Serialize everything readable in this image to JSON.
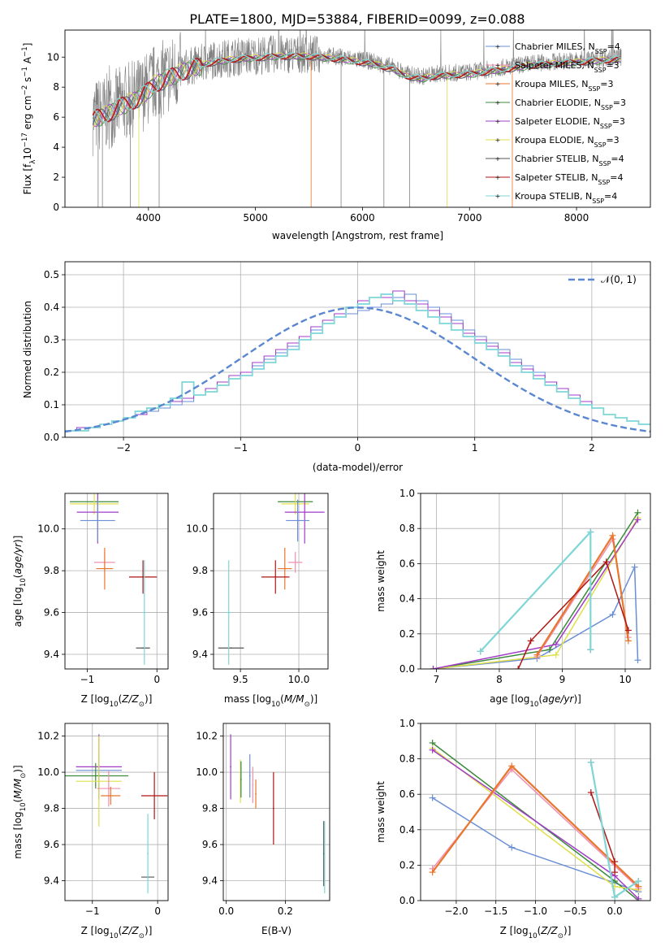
{
  "figure_title": "PLATE=1800, MJD=53884, FIBERID=0099, z=0.088",
  "chart_data": [
    {
      "id": "spectrum",
      "type": "line",
      "title": "PLATE=1800, MJD=53884, FIBERID=0099, z=0.088",
      "xlabel": "wavelength [Angstrom, rest frame]",
      "ylabel": "Flux [f_λ10^-17 erg cm^-2 s^-1 A^-1]",
      "xlim": [
        3220,
        8690
      ],
      "ylim": [
        0,
        11.8
      ],
      "xticks": [
        "4000",
        "5000",
        "6000",
        "7000",
        "8000"
      ],
      "yticks": [
        "0",
        "2",
        "4",
        "6",
        "8",
        "10"
      ],
      "grid": false,
      "legend": "right",
      "legend_entries": [
        {
          "name": "Chabrier MILES, N_SSP=4",
          "color": "#6a8fd6"
        },
        {
          "name": "Salpeter MILES, N_SSP=3",
          "color": "#f08fb0"
        },
        {
          "name": "Kroupa MILES, N_SSP=3",
          "color": "#e8762c"
        },
        {
          "name": "Chabrier ELODIE, N_SSP=3",
          "color": "#3c8a3c"
        },
        {
          "name": "Salpeter ELODIE, N_SSP=3",
          "color": "#a23cc8"
        },
        {
          "name": "Kroupa ELODIE, N_SSP=3",
          "color": "#dfe04a"
        },
        {
          "name": "Chabrier STELIB, N_SSP=4",
          "color": "#555555"
        },
        {
          "name": "Salpeter STELIB, N_SSP=4",
          "color": "#b01515"
        },
        {
          "name": "Kroupa STELIB, N_SSP=4",
          "color": "#7fd6d6"
        }
      ],
      "observed_color": "#808080",
      "continuum": [
        [
          3480,
          6.0
        ],
        [
          3600,
          6.3
        ],
        [
          3750,
          6.9
        ],
        [
          3850,
          7.2
        ],
        [
          3950,
          7.6
        ],
        [
          4050,
          8.3
        ],
        [
          4200,
          8.8
        ],
        [
          4400,
          9.4
        ],
        [
          4600,
          9.8
        ],
        [
          4800,
          10.0
        ],
        [
          5000,
          10.1
        ],
        [
          5200,
          10.2
        ],
        [
          5500,
          10.2
        ],
        [
          5800,
          10.0
        ],
        [
          6100,
          9.7
        ],
        [
          6300,
          9.3
        ],
        [
          6400,
          8.9
        ],
        [
          6550,
          8.7
        ],
        [
          6700,
          8.9
        ],
        [
          7000,
          9.0
        ],
        [
          7300,
          9.3
        ],
        [
          7600,
          9.6
        ],
        [
          8000,
          9.8
        ],
        [
          8400,
          10.0
        ]
      ]
    },
    {
      "id": "residuals",
      "type": "step",
      "xlabel": "(data-model)/error",
      "ylabel": "Normed distribution",
      "xlim": [
        -2.5,
        2.5
      ],
      "ylim": [
        0,
        0.54
      ],
      "xticks": [
        "−2",
        "−1",
        "0",
        "1",
        "2"
      ],
      "yticks": [
        "0.0",
        "0.1",
        "0.2",
        "0.3",
        "0.4",
        "0.5"
      ],
      "grid": true,
      "legend": "top-right",
      "legend_entry": "𝒩(0, 1)",
      "normal_color": "#5b87d0",
      "bin_width": 0.1,
      "bin_start": -2.5,
      "histograms": [
        {
          "color": "#6a8fd6",
          "values": [
            0.02,
            0.02,
            0.03,
            0.04,
            0.05,
            0.06,
            0.07,
            0.08,
            0.09,
            0.1,
            0.11,
            0.13,
            0.15,
            0.17,
            0.18,
            0.2,
            0.22,
            0.24,
            0.26,
            0.28,
            0.31,
            0.33,
            0.35,
            0.37,
            0.38,
            0.39,
            0.4,
            0.41,
            0.43,
            0.44,
            0.42,
            0.4,
            0.38,
            0.36,
            0.33,
            0.31,
            0.29,
            0.27,
            0.24,
            0.22,
            0.2,
            0.17,
            0.15,
            0.13,
            0.11,
            0.09,
            0.07,
            0.06,
            0.05,
            0.04
          ]
        },
        {
          "color": "#a23cc8",
          "values": [
            0.02,
            0.03,
            0.03,
            0.04,
            0.05,
            0.06,
            0.07,
            0.09,
            0.1,
            0.11,
            0.12,
            0.13,
            0.15,
            0.17,
            0.19,
            0.2,
            0.23,
            0.25,
            0.27,
            0.29,
            0.31,
            0.34,
            0.36,
            0.38,
            0.4,
            0.42,
            0.43,
            0.43,
            0.45,
            0.42,
            0.41,
            0.39,
            0.37,
            0.35,
            0.32,
            0.3,
            0.28,
            0.26,
            0.23,
            0.21,
            0.19,
            0.17,
            0.15,
            0.13,
            0.11,
            0.09,
            0.07,
            0.06,
            0.05,
            0.04
          ]
        },
        {
          "color": "#7fd6d6",
          "values": [
            0.02,
            0.02,
            0.03,
            0.04,
            0.05,
            0.06,
            0.08,
            0.09,
            0.1,
            0.12,
            0.17,
            0.13,
            0.14,
            0.16,
            0.18,
            0.19,
            0.21,
            0.23,
            0.25,
            0.27,
            0.3,
            0.32,
            0.35,
            0.37,
            0.4,
            0.41,
            0.43,
            0.44,
            0.42,
            0.41,
            0.39,
            0.37,
            0.35,
            0.33,
            0.31,
            0.29,
            0.27,
            0.25,
            0.22,
            0.2,
            0.18,
            0.16,
            0.14,
            0.12,
            0.1,
            0.09,
            0.07,
            0.06,
            0.05,
            0.04
          ]
        }
      ],
      "normal_curve": {
        "mu": 0,
        "sigma": 1
      }
    },
    {
      "id": "age-vs-Z",
      "type": "scatter",
      "xlabel": "Z [log10(Z/Z⊙)]",
      "ylabel": "age  [log10(age/yr)]",
      "xlim": [
        -1.32,
        0.16
      ],
      "ylim": [
        9.33,
        10.17
      ],
      "xticks": [
        "−1",
        "0"
      ],
      "yticks": [
        "9.4",
        "9.6",
        "9.8",
        "10.0"
      ],
      "grid": true,
      "points": [
        {
          "x": -0.9,
          "y": 10.13,
          "xerr": 0.35,
          "yerr": 0.0,
          "color": "#3c8a3c"
        },
        {
          "x": -0.9,
          "y": 10.12,
          "xerr": 0.35,
          "yerr": 0.05,
          "color": "#dfe04a"
        },
        {
          "x": -0.85,
          "y": 10.08,
          "xerr": 0.3,
          "yerr": 0.15,
          "color": "#a23cc8"
        },
        {
          "x": -0.85,
          "y": 10.04,
          "xerr": 0.25,
          "yerr": 0.1,
          "color": "#6a8fd6"
        },
        {
          "x": -0.75,
          "y": 9.84,
          "xerr": 0.15,
          "yerr": 0.05,
          "color": "#f08fb0"
        },
        {
          "x": -0.75,
          "y": 9.81,
          "xerr": 0.12,
          "yerr": 0.1,
          "color": "#e8762c"
        },
        {
          "x": -0.2,
          "y": 9.77,
          "xerr": 0.2,
          "yerr": 0.08,
          "color": "#b01515"
        },
        {
          "x": -0.2,
          "y": 9.43,
          "xerr": 0.1,
          "yerr": 0.0,
          "color": "#555555"
        },
        {
          "x": -0.18,
          "y": 9.6,
          "xerr": 0.02,
          "yerr": 0.25,
          "color": "#7fd6d6"
        }
      ]
    },
    {
      "id": "age-vs-mass",
      "type": "scatter",
      "xlabel": "mass [log10(M/M⊙)]",
      "ylabel": "",
      "xlim": [
        9.27,
        10.25
      ],
      "ylim": [
        9.33,
        10.17
      ],
      "xticks": [
        "9.5",
        "10.0"
      ],
      "yticks": [
        "9.4",
        "9.6",
        "9.8",
        "10.0"
      ],
      "grid": true,
      "points": [
        {
          "x": 9.97,
          "y": 10.13,
          "xerr": 0.15,
          "yerr": 0.0,
          "color": "#3c8a3c"
        },
        {
          "x": 9.97,
          "y": 10.12,
          "xerr": 0.12,
          "yerr": 0.05,
          "color": "#dfe04a"
        },
        {
          "x": 10.05,
          "y": 10.08,
          "xerr": 0.17,
          "yerr": 0.15,
          "color": "#a23cc8"
        },
        {
          "x": 9.99,
          "y": 10.04,
          "xerr": 0.1,
          "yerr": 0.1,
          "color": "#6a8fd6"
        },
        {
          "x": 9.97,
          "y": 9.84,
          "xerr": 0.06,
          "yerr": 0.05,
          "color": "#f08fb0"
        },
        {
          "x": 9.88,
          "y": 9.81,
          "xerr": 0.06,
          "yerr": 0.1,
          "color": "#e8762c"
        },
        {
          "x": 9.8,
          "y": 9.77,
          "xerr": 0.12,
          "yerr": 0.08,
          "color": "#b01515"
        },
        {
          "x": 9.42,
          "y": 9.43,
          "xerr": 0.11,
          "yerr": 0.0,
          "color": "#555555"
        },
        {
          "x": 9.4,
          "y": 9.6,
          "xerr": 0.02,
          "yerr": 0.25,
          "color": "#7fd6d6"
        }
      ]
    },
    {
      "id": "weight-vs-age",
      "type": "line",
      "xlabel": "age  [log10(age/yr)]",
      "ylabel": "mass weight",
      "xlim": [
        6.75,
        10.4
      ],
      "ylim": [
        0,
        1.0
      ],
      "xticks": [
        "7",
        "8",
        "9",
        "10"
      ],
      "yticks": [
        "0.0",
        "0.2",
        "0.4",
        "0.6",
        "0.8",
        "1.0"
      ],
      "grid": true,
      "series": [
        {
          "color": "#6a8fd6",
          "x": [
            6.95,
            8.6,
            9.8,
            10.15,
            10.2
          ],
          "y": [
            0.0,
            0.06,
            0.31,
            0.58,
            0.05
          ]
        },
        {
          "color": "#3c8a3c",
          "x": [
            6.95,
            8.8,
            10.2
          ],
          "y": [
            0.0,
            0.11,
            0.89
          ]
        },
        {
          "color": "#dfe04a",
          "x": [
            6.95,
            8.9,
            10.2
          ],
          "y": [
            0.0,
            0.08,
            0.86
          ]
        },
        {
          "color": "#a23cc8",
          "x": [
            6.95,
            8.9,
            10.2
          ],
          "y": [
            0.0,
            0.14,
            0.85
          ]
        },
        {
          "color": "#f08fb0",
          "x": [
            8.6,
            9.8,
            10.05
          ],
          "y": [
            0.07,
            0.74,
            0.18
          ]
        },
        {
          "color": "#e8762c",
          "x": [
            8.6,
            9.8,
            10.05
          ],
          "y": [
            0.08,
            0.76,
            0.16
          ]
        },
        {
          "color": "#b01515",
          "x": [
            8.3,
            8.5,
            9.7,
            10.05
          ],
          "y": [
            0.0,
            0.16,
            0.61,
            0.22
          ]
        },
        {
          "color": "#555555",
          "x": [
            7.7,
            9.45,
            9.45
          ],
          "y": [
            0.1,
            0.78,
            0.11
          ]
        },
        {
          "color": "#7fd6d6",
          "x": [
            7.7,
            9.45,
            9.45
          ],
          "y": [
            0.1,
            0.78,
            0.11
          ]
        }
      ]
    },
    {
      "id": "mass-vs-Z",
      "type": "scatter",
      "xlabel": "Z [log10(Z/Z⊙)]",
      "ylabel": "mass [log10(M/M⊙)]",
      "xlim": [
        -1.42,
        0.16
      ],
      "ylim": [
        9.29,
        10.27
      ],
      "xticks": [
        "−1",
        "0"
      ],
      "yticks": [
        "9.4",
        "9.6",
        "9.8",
        "10.0",
        "10.2"
      ],
      "grid": true,
      "points": [
        {
          "x": -0.9,
          "y": 10.03,
          "xerr": 0.35,
          "yerr": 0.18,
          "color": "#a23cc8"
        },
        {
          "x": -0.9,
          "y": 10.01,
          "xerr": 0.35,
          "yerr": 0.1,
          "color": "#6a8fd6"
        },
        {
          "x": -0.95,
          "y": 9.98,
          "xerr": 0.5,
          "yerr": 0.07,
          "color": "#3c8a3c"
        },
        {
          "x": -0.9,
          "y": 9.95,
          "xerr": 0.35,
          "yerr": 0.25,
          "color": "#dfe04a"
        },
        {
          "x": -0.75,
          "y": 9.91,
          "xerr": 0.18,
          "yerr": 0.1,
          "color": "#f08fb0"
        },
        {
          "x": -0.72,
          "y": 9.87,
          "xerr": 0.15,
          "yerr": 0.05,
          "color": "#e8762c"
        },
        {
          "x": -0.05,
          "y": 9.87,
          "xerr": 0.2,
          "yerr": 0.13,
          "color": "#b01515"
        },
        {
          "x": -0.15,
          "y": 9.42,
          "xerr": 0.1,
          "yerr": 0.0,
          "color": "#555555"
        },
        {
          "x": -0.15,
          "y": 9.55,
          "xerr": 0.01,
          "yerr": 0.22,
          "color": "#7fd6d6"
        }
      ]
    },
    {
      "id": "mass-vs-EBV",
      "type": "scatter",
      "xlabel": "E(B-V)",
      "ylabel": "",
      "xlim": [
        -0.01,
        0.35
      ],
      "ylim": [
        9.29,
        10.27
      ],
      "xticks": [
        "0.0",
        "0.2"
      ],
      "yticks": [
        "9.4",
        "9.6",
        "9.8",
        "10.0",
        "10.2"
      ],
      "grid": true,
      "points": [
        {
          "x": 0.015,
          "y": 10.03,
          "xerr": 0.0,
          "yerr": 0.18,
          "color": "#a23cc8"
        },
        {
          "x": 0.048,
          "y": 9.95,
          "xerr": 0.0,
          "yerr": 0.12,
          "color": "#dfe04a"
        },
        {
          "x": 0.05,
          "y": 9.96,
          "xerr": 0.0,
          "yerr": 0.1,
          "color": "#3c8a3c"
        },
        {
          "x": 0.08,
          "y": 9.98,
          "xerr": 0.0,
          "yerr": 0.12,
          "color": "#6a8fd6"
        },
        {
          "x": 0.09,
          "y": 9.93,
          "xerr": 0.0,
          "yerr": 0.1,
          "color": "#f08fb0"
        },
        {
          "x": 0.1,
          "y": 9.88,
          "xerr": 0.0,
          "yerr": 0.08,
          "color": "#e8762c"
        },
        {
          "x": 0.16,
          "y": 9.8,
          "xerr": 0.0,
          "yerr": 0.2,
          "color": "#b01515"
        },
        {
          "x": 0.33,
          "y": 9.55,
          "xerr": 0.0,
          "yerr": 0.18,
          "color": "#555555"
        },
        {
          "x": 0.333,
          "y": 9.53,
          "xerr": 0.0,
          "yerr": 0.2,
          "color": "#7fd6d6"
        }
      ]
    },
    {
      "id": "weight-vs-Z",
      "type": "line",
      "xlabel": "Z [log10(Z/Z⊙)]",
      "ylabel": "mass weight",
      "xlim": [
        -2.45,
        0.45
      ],
      "ylim": [
        0,
        1.0
      ],
      "xticks": [
        "−2.0",
        "−1.5",
        "−1.0",
        "−0.5",
        "0.0"
      ],
      "yticks": [
        "0.0",
        "0.2",
        "0.4",
        "0.6",
        "0.8",
        "1.0"
      ],
      "grid": true,
      "series": [
        {
          "color": "#6a8fd6",
          "x": [
            -2.3,
            -1.3,
            0.0,
            0.3
          ],
          "y": [
            0.58,
            0.3,
            0.1,
            0.05
          ]
        },
        {
          "color": "#3c8a3c",
          "x": [
            -2.3,
            0.0,
            0.3
          ],
          "y": [
            0.89,
            0.11,
            0.0
          ]
        },
        {
          "color": "#dfe04a",
          "x": [
            -2.3,
            0.0,
            0.3
          ],
          "y": [
            0.86,
            0.08,
            0.06
          ]
        },
        {
          "color": "#a23cc8",
          "x": [
            -2.3,
            0.0,
            0.3
          ],
          "y": [
            0.85,
            0.14,
            0.01
          ]
        },
        {
          "color": "#f08fb0",
          "x": [
            -2.3,
            -1.3,
            0.3
          ],
          "y": [
            0.18,
            0.74,
            0.07
          ]
        },
        {
          "color": "#e8762c",
          "x": [
            -2.3,
            -1.3,
            0.3
          ],
          "y": [
            0.16,
            0.76,
            0.08
          ]
        },
        {
          "color": "#b01515",
          "x": [
            -0.3,
            0.0,
            0.0
          ],
          "y": [
            0.61,
            0.22,
            0.16
          ]
        },
        {
          "color": "#555555",
          "x": [
            -0.3,
            0.0,
            0.3
          ],
          "y": [
            0.78,
            0.02,
            0.11
          ]
        },
        {
          "color": "#7fd6d6",
          "x": [
            -0.3,
            0.0,
            0.3
          ],
          "y": [
            0.78,
            0.02,
            0.11
          ]
        }
      ]
    }
  ]
}
